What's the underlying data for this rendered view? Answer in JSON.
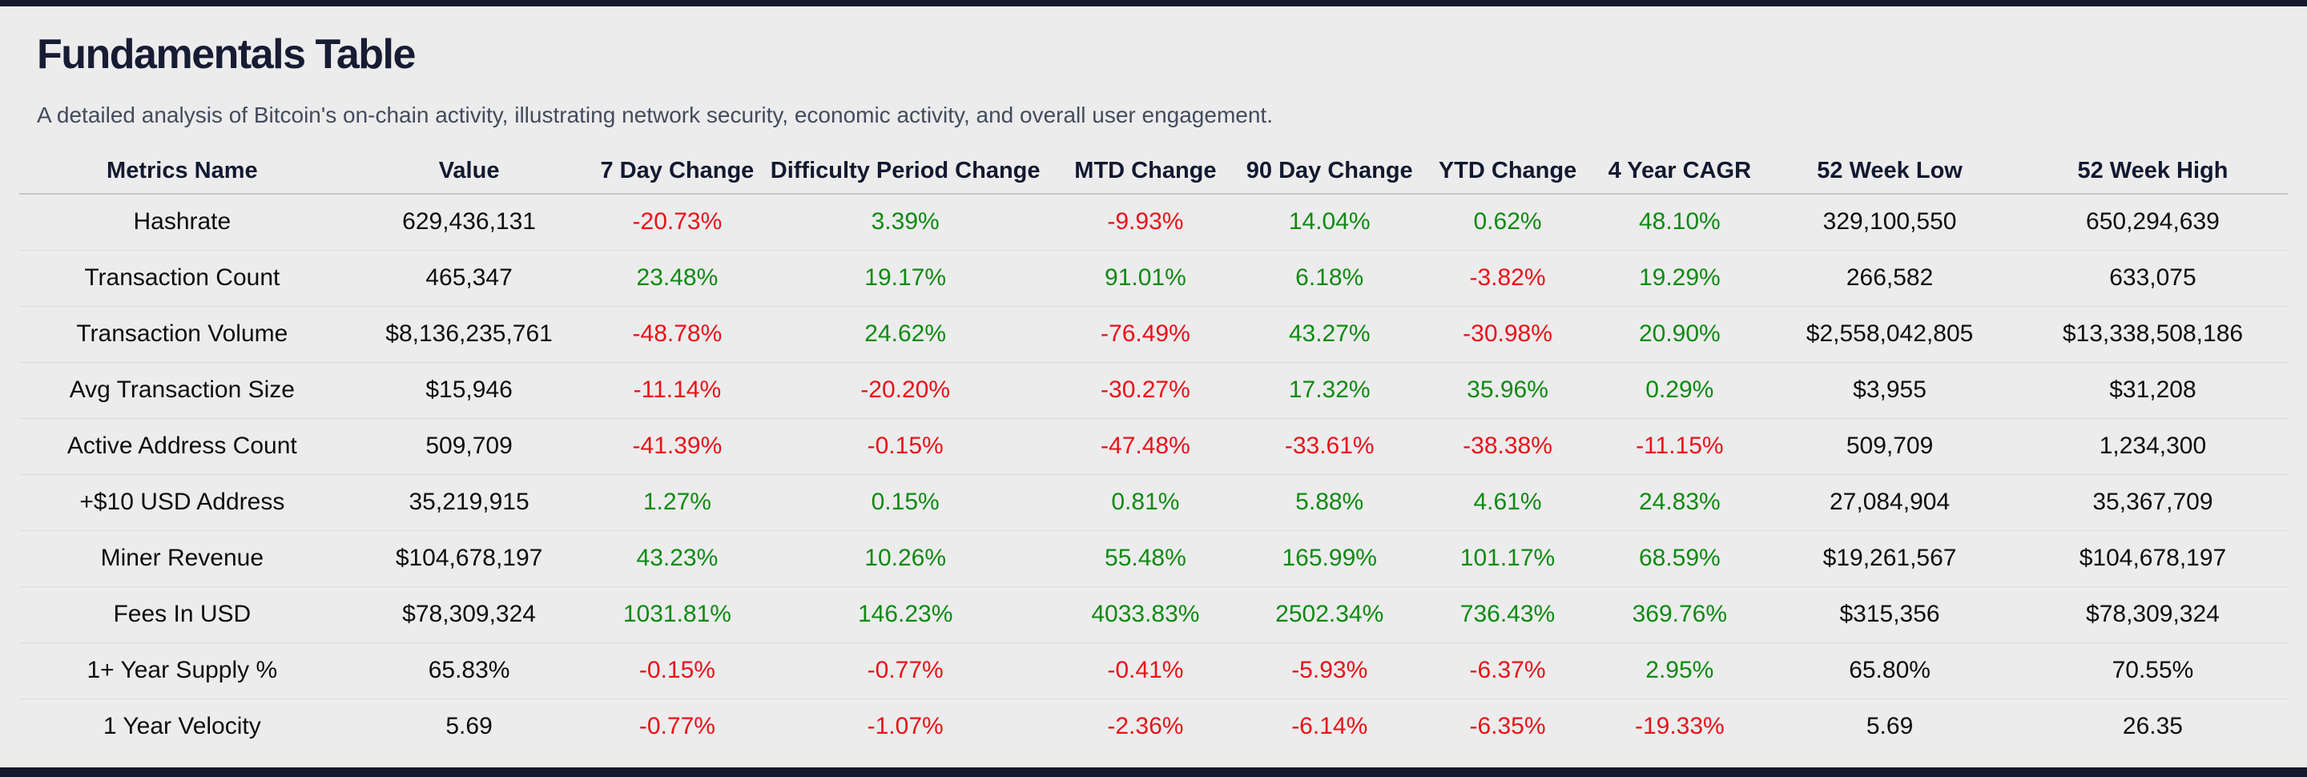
{
  "page": {
    "title": "Fundamentals Table",
    "subtitle": "A detailed analysis of Bitcoin's on-chain activity, illustrating network security, economic activity, and overall user engagement."
  },
  "colors": {
    "background": "#ececec",
    "edge_bar": "#15192b",
    "title_text": "#181c33",
    "subtitle_text": "#434b5c",
    "positive": "#0e8a12",
    "negative": "#e81219",
    "neutral_text": "#0d0d0d"
  },
  "chart_data": {
    "type": "table",
    "title": "Fundamentals Table",
    "subtitle": "A detailed analysis of Bitcoin's on-chain activity, illustrating network security, economic activity, and overall user engagement.",
    "columns": [
      "Metrics Name",
      "Value",
      "7 Day Change",
      "Difficulty Period Change",
      "MTD Change",
      "90 Day Change",
      "YTD Change",
      "4 Year CAGR",
      "52 Week Low",
      "52 Week High"
    ],
    "layout_hints": {
      "all_cells_centered": true,
      "change_columns_colored_by_sign": true,
      "row_separators": true
    },
    "rows": [
      {
        "metric": "Hashrate",
        "value": "629,436,131",
        "changes": [
          "-20.73%",
          "3.39%",
          "-9.93%",
          "14.04%",
          "0.62%",
          "48.10%"
        ],
        "low": "329,100,550",
        "high": "650,294,639"
      },
      {
        "metric": "Transaction Count",
        "value": "465,347",
        "changes": [
          "23.48%",
          "19.17%",
          "91.01%",
          "6.18%",
          "-3.82%",
          "19.29%"
        ],
        "low": "266,582",
        "high": "633,075"
      },
      {
        "metric": "Transaction Volume",
        "value": "$8,136,235,761",
        "changes": [
          "-48.78%",
          "24.62%",
          "-76.49%",
          "43.27%",
          "-30.98%",
          "20.90%"
        ],
        "low": "$2,558,042,805",
        "high": "$13,338,508,186"
      },
      {
        "metric": "Avg Transaction Size",
        "value": "$15,946",
        "changes": [
          "-11.14%",
          "-20.20%",
          "-30.27%",
          "17.32%",
          "35.96%",
          "0.29%"
        ],
        "low": "$3,955",
        "high": "$31,208"
      },
      {
        "metric": "Active Address Count",
        "value": "509,709",
        "changes": [
          "-41.39%",
          "-0.15%",
          "-47.48%",
          "-33.61%",
          "-38.38%",
          "-11.15%"
        ],
        "low": "509,709",
        "high": "1,234,300"
      },
      {
        "metric": "+$10 USD Address",
        "value": "35,219,915",
        "changes": [
          "1.27%",
          "0.15%",
          "0.81%",
          "5.88%",
          "4.61%",
          "24.83%"
        ],
        "low": "27,084,904",
        "high": "35,367,709"
      },
      {
        "metric": "Miner Revenue",
        "value": "$104,678,197",
        "changes": [
          "43.23%",
          "10.26%",
          "55.48%",
          "165.99%",
          "101.17%",
          "68.59%"
        ],
        "low": "$19,261,567",
        "high": "$104,678,197"
      },
      {
        "metric": "Fees In USD",
        "value": "$78,309,324",
        "changes": [
          "1031.81%",
          "146.23%",
          "4033.83%",
          "2502.34%",
          "736.43%",
          "369.76%"
        ],
        "low": "$315,356",
        "high": "$78,309,324"
      },
      {
        "metric": "1+ Year Supply %",
        "value": "65.83%",
        "changes": [
          "-0.15%",
          "-0.77%",
          "-0.41%",
          "-5.93%",
          "-6.37%",
          "2.95%"
        ],
        "low": "65.80%",
        "high": "70.55%"
      },
      {
        "metric": "1 Year Velocity",
        "value": "5.69",
        "changes": [
          "-0.77%",
          "-1.07%",
          "-2.36%",
          "-6.14%",
          "-6.35%",
          "-19.33%"
        ],
        "low": "5.69",
        "high": "26.35"
      }
    ]
  }
}
